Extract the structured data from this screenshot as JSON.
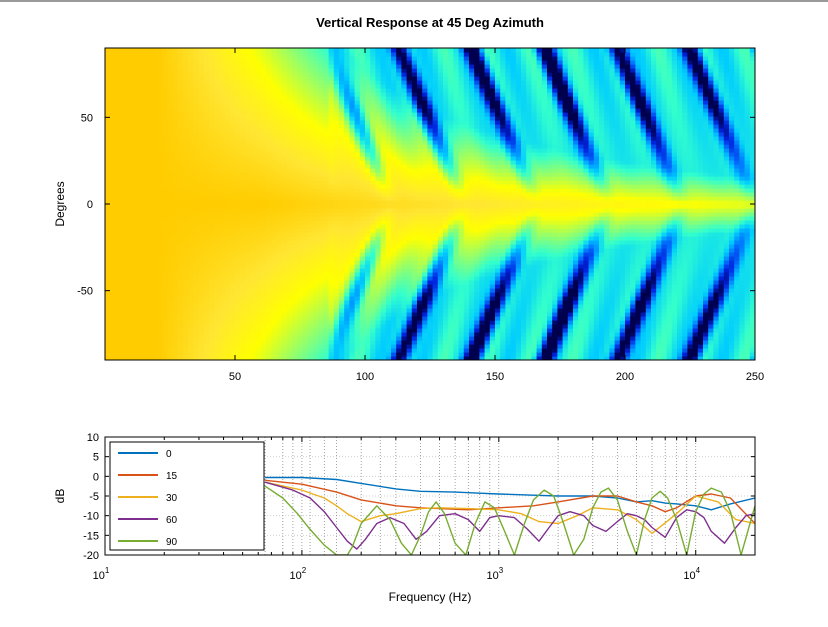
{
  "chart_data": [
    {
      "type": "heatmap",
      "title": "Vertical Response at 45 Deg Azimuth",
      "xlabel": "",
      "ylabel": "Degrees",
      "xlim": [
        0,
        250
      ],
      "ylim": [
        -90,
        90
      ],
      "x_ticks": [
        50,
        100,
        150,
        200,
        250
      ],
      "y_ticks": [
        50,
        0,
        -50
      ],
      "colormap": [
        "#ffcc00",
        "#ffe633",
        "#ffff00",
        "#99ff66",
        "#33ffcc",
        "#00ccff",
        "#0077ff",
        "#0022dd",
        "#00004d"
      ],
      "pattern": {
        "flat_region_end_x": 20,
        "null_onset_x": 85,
        "null_spacing_x": 28,
        "description_values": "levels ~0 dB (orange) at low frequency, nulls (dark blue) off-axis above ~85"
      },
      "grid": false
    },
    {
      "type": "line",
      "title": "",
      "xlabel": "Frequency (Hz)",
      "ylabel": "dB",
      "xscale": "log",
      "xlim": [
        10,
        20000
      ],
      "ylim": [
        -20,
        10
      ],
      "y_ticks": [
        10,
        5,
        0,
        -5,
        -10,
        -15,
        -20
      ],
      "x_ticks": [
        {
          "value": 10,
          "base": "10",
          "exp": "1"
        },
        {
          "value": 100,
          "base": "10",
          "exp": "2"
        },
        {
          "value": 1000,
          "base": "10",
          "exp": "3"
        },
        {
          "value": 10000,
          "base": "10",
          "exp": "4"
        }
      ],
      "grid_x": [
        65,
        80,
        90,
        100,
        110,
        130,
        150,
        200,
        250,
        300,
        400,
        500,
        600,
        700,
        800,
        900,
        1000,
        2000,
        3000,
        4000,
        5000,
        6000,
        7000,
        8000,
        9000,
        10000,
        20000
      ],
      "grid_y": [
        5,
        0,
        -5,
        -10,
        -15
      ],
      "legend_position": "top-left",
      "series": [
        {
          "name": "0",
          "color": "#0072bd",
          "x": [
            65,
            100,
            150,
            200,
            300,
            400,
            600,
            800,
            1000,
            1500,
            2000,
            3000,
            4000,
            5000,
            6000,
            7000,
            8000,
            10000,
            12000,
            15000,
            20000
          ],
          "y": [
            -0.3,
            -0.3,
            -0.8,
            -1.8,
            -3.2,
            -3.8,
            -4.0,
            -4.3,
            -4.5,
            -4.8,
            -5.0,
            -5.0,
            -5.5,
            -6.5,
            -6.2,
            -6.8,
            -7.0,
            -7.5,
            -8.5,
            -7.0,
            -5.5
          ]
        },
        {
          "name": "15",
          "color": "#d95319",
          "x": [
            65,
            100,
            150,
            200,
            300,
            400,
            500,
            700,
            1000,
            1500,
            2000,
            3000,
            4000,
            5000,
            6000,
            7000,
            8000,
            10000,
            12000,
            15000,
            20000
          ],
          "y": [
            -1.0,
            -2.0,
            -4.0,
            -6.0,
            -7.5,
            -8.0,
            -8.2,
            -8.5,
            -8.0,
            -7.5,
            -6.5,
            -5.0,
            -5.0,
            -6.5,
            -7.5,
            -9.0,
            -8.0,
            -5.0,
            -4.5,
            -5.5,
            -12.0
          ]
        },
        {
          "name": "30",
          "color": "#edb120",
          "x": [
            65,
            100,
            130,
            150,
            170,
            200,
            250,
            300,
            350,
            400,
            500,
            700,
            1000,
            1300,
            1600,
            2000,
            2500,
            3000,
            4000,
            5000,
            6000,
            8000,
            10000,
            13000,
            16000,
            20000
          ],
          "y": [
            -1.5,
            -3.5,
            -5.5,
            -7.5,
            -9.5,
            -11.5,
            -10.0,
            -9.5,
            -8.8,
            -8.2,
            -8.0,
            -8.2,
            -8.5,
            -9.5,
            -11.5,
            -12.0,
            -10.0,
            -8.0,
            -8.5,
            -11.0,
            -14.5,
            -9.5,
            -5.0,
            -6.5,
            -11.0,
            -12.0
          ]
        },
        {
          "name": "60",
          "color": "#7e2f8e",
          "x": [
            65,
            90,
            110,
            130,
            150,
            170,
            190,
            210,
            240,
            280,
            330,
            380,
            430,
            500,
            600,
            700,
            800,
            900,
            1000,
            1200,
            1400,
            1600,
            1800,
            2000,
            2300,
            2700,
            3000,
            3500,
            4000,
            4500,
            5000,
            5500,
            6000,
            7000,
            8000,
            9000,
            10000,
            11000,
            12000,
            14000,
            16000,
            18000,
            20000
          ],
          "y": [
            -1.5,
            -3.5,
            -5.5,
            -9.0,
            -13.0,
            -16.5,
            -18.5,
            -16.0,
            -12.0,
            -10.5,
            -12.0,
            -16.0,
            -14.0,
            -10.0,
            -9.5,
            -11.0,
            -14.0,
            -10.5,
            -10.0,
            -10.5,
            -13.5,
            -16.5,
            -13.0,
            -10.0,
            -9.0,
            -10.0,
            -12.5,
            -14.0,
            -11.5,
            -9.5,
            -10.0,
            -11.0,
            -13.0,
            -15.5,
            -10.5,
            -8.5,
            -9.0,
            -10.5,
            -14.0,
            -17.0,
            -13.0,
            -10.0,
            -9.5
          ]
        },
        {
          "name": "90",
          "color": "#77ac30",
          "x": [
            65,
            80,
            95,
            110,
            130,
            150,
            170,
            180,
            200,
            240,
            280,
            320,
            360,
            400,
            440,
            480,
            530,
            600,
            680,
            760,
            850,
            950,
            1050,
            1200,
            1350,
            1500,
            1700,
            1900,
            2100,
            2400,
            2700,
            3000,
            3300,
            3600,
            4000,
            4500,
            5000,
            5500,
            6000,
            6600,
            7200,
            8000,
            9000,
            10000,
            11000,
            12000,
            13500,
            15000,
            17000,
            20000
          ],
          "y": [
            -2.5,
            -5.5,
            -9.5,
            -13.5,
            -17.5,
            -20.0,
            -20.0,
            -18.0,
            -12.0,
            -7.5,
            -11.0,
            -17.0,
            -20.0,
            -15.0,
            -9.0,
            -6.5,
            -9.5,
            -17.0,
            -20.0,
            -12.0,
            -6.5,
            -8.0,
            -13.0,
            -20.0,
            -12.0,
            -6.0,
            -3.5,
            -5.0,
            -11.0,
            -20.0,
            -16.0,
            -8.0,
            -4.0,
            -3.0,
            -6.0,
            -14.0,
            -20.0,
            -11.0,
            -5.5,
            -3.8,
            -5.5,
            -11.0,
            -20.0,
            -9.0,
            -4.5,
            -3.0,
            -4.0,
            -9.0,
            -20.0,
            -7.5
          ]
        }
      ]
    }
  ]
}
